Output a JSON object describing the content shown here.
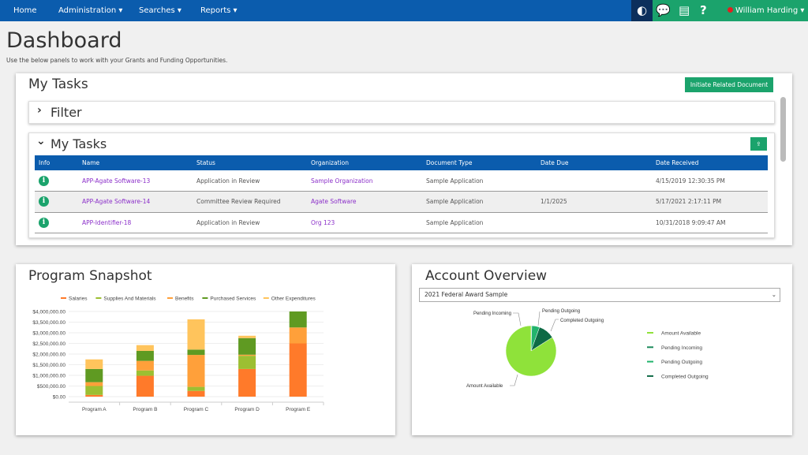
{
  "nav": {
    "items": [
      "Home",
      "Administration ▾",
      "Searches ▾",
      "Reports ▾"
    ],
    "user": "William Harding ▾",
    "icons": [
      "contrast-icon",
      "chat-icon",
      "book-icon",
      "help-icon"
    ]
  },
  "page": {
    "title": "Dashboard",
    "subtitle": "Use the below panels to work with your Grants and Funding Opportunities."
  },
  "tasks": {
    "title": "My Tasks",
    "initiate_label": "Initiate Related Document",
    "filter_label": "Filter",
    "inner_title": "My Tasks",
    "columns": [
      "Info",
      "Name",
      "Status",
      "Organization",
      "Document Type",
      "Date Due",
      "Date Received"
    ],
    "rows": [
      [
        "APP-Agate Software-13",
        "Application in Review",
        "Sample Organization",
        "Sample Application",
        "",
        "4/15/2019 12:30:35 PM"
      ],
      [
        "APP-Agate Software-14",
        "Committee Review Required",
        "Agate Software",
        "Sample Application",
        "1/1/2025",
        "5/17/2021 2:17:11 PM"
      ],
      [
        "APP-Identifier-18",
        "Application in Review",
        "Org 123",
        "Sample Application",
        "",
        "10/31/2018 9:09:47 AM"
      ]
    ]
  },
  "snapshot": {
    "title": "Program Snapshot"
  },
  "account": {
    "title": "Account Overview",
    "select_value": "2021 Federal Award Sample"
  },
  "colors": {
    "nav": "#0b5cad",
    "accent": "#1ba36c"
  },
  "chart_data": [
    {
      "type": "bar",
      "stacked": true,
      "categories": [
        "Program A",
        "Program B",
        "Program C",
        "Program D",
        "Program E"
      ],
      "ylim": [
        0,
        4000000
      ],
      "yticks": [
        "$0.00",
        "$500,000.00",
        "$1,000,000.00",
        "$1,500,000.00",
        "$2,000,000.00",
        "$2,500,000.00",
        "$3,000,000.00",
        "$3,500,000.00",
        "$4,000,000.00"
      ],
      "legend": "top",
      "grid": true,
      "series": [
        {
          "name": "Salaries",
          "color": "#ff7a2a",
          "values": [
            80000,
            980000,
            270000,
            1300000,
            2500000
          ]
        },
        {
          "name": "Supplies And Materials",
          "color": "#9cbf32",
          "values": [
            420000,
            250000,
            190000,
            620000,
            0
          ]
        },
        {
          "name": "Benefits",
          "color": "#ffa03a",
          "values": [
            180000,
            450000,
            1500000,
            50000,
            750000
          ]
        },
        {
          "name": "Purchased Services",
          "color": "#5f9a22",
          "values": [
            620000,
            470000,
            250000,
            780000,
            750000
          ]
        },
        {
          "name": "Other Expenditures",
          "color": "#ffc45c",
          "values": [
            450000,
            270000,
            1420000,
            110000,
            0
          ]
        }
      ]
    },
    {
      "type": "pie",
      "legend": "right",
      "slices": [
        {
          "name": "Amount Available",
          "value": 84,
          "color": "#8fe23a"
        },
        {
          "name": "Pending Incoming",
          "value": 0.5,
          "color": "#1b8a5a"
        },
        {
          "name": "Pending Outgoing",
          "value": 5,
          "color": "#22b36c"
        },
        {
          "name": "Completed Outgoing",
          "value": 10.5,
          "color": "#0e6a45"
        }
      ]
    }
  ]
}
